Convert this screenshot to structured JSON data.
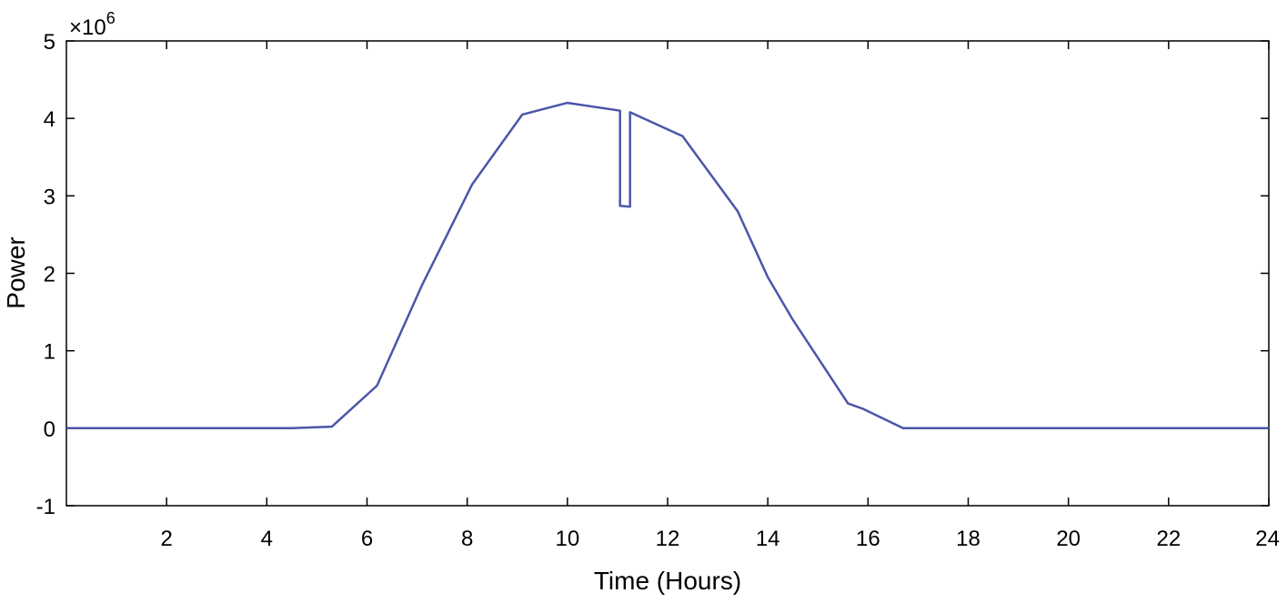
{
  "chart_data": {
    "type": "line",
    "title": "",
    "xlabel": "Time (Hours)",
    "ylabel": "Power",
    "y_multiplier": {
      "base": "×10",
      "exponent": "6"
    },
    "xlim": [
      0,
      24
    ],
    "ylim": [
      -1,
      5
    ],
    "x_ticks": [
      2,
      4,
      6,
      8,
      10,
      12,
      14,
      16,
      18,
      20,
      22,
      24
    ],
    "y_ticks": [
      -1,
      0,
      1,
      2,
      3,
      4,
      5
    ],
    "grid": false,
    "line_color": "#4b56a8",
    "series": [
      {
        "x": [
          0,
          4.5,
          5.3,
          6.2,
          7.1,
          8.1,
          9.1,
          10.0,
          11.05,
          11.05,
          11.25,
          11.25,
          12.3,
          13.4,
          14.0,
          14.5,
          15.6,
          15.9,
          16.7,
          18,
          20,
          22,
          24
        ],
        "y": [
          0,
          0,
          0.02,
          0.55,
          1.85,
          3.15,
          4.05,
          4.2,
          4.1,
          2.87,
          2.86,
          4.08,
          3.77,
          2.8,
          1.95,
          1.4,
          0.32,
          0.25,
          0,
          0,
          0,
          0,
          0
        ]
      }
    ]
  }
}
